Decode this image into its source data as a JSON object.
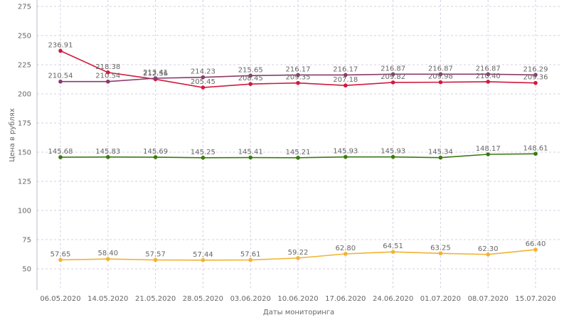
{
  "chart_data": {
    "type": "line",
    "title": "",
    "xlabel": "Даты мониторинга",
    "ylabel": "Цена в рублях",
    "ylim": [
      35,
      275
    ],
    "yticks": [
      50,
      75,
      100,
      125,
      150,
      175,
      200,
      225,
      250,
      275
    ],
    "grid": true,
    "legend": "none",
    "categories": [
      "06.05.2020",
      "14.05.2020",
      "21.05.2020",
      "28.05.2020",
      "03.06.2020",
      "10.06.2020",
      "17.06.2020",
      "24.06.2020",
      "01.07.2020",
      "08.07.2020",
      "15.07.2020"
    ],
    "series": [
      {
        "color": "#d01a3c",
        "values": [
          236.91,
          218.38,
          212.56,
          205.45,
          208.45,
          209.35,
          207.18,
          209.82,
          209.98,
          210.4,
          209.36
        ],
        "labels": [
          "236.91",
          "218.38",
          "212.56",
          "205.45",
          "208.45",
          "209.35",
          "207.18",
          "209.82",
          "209.98",
          "210.40",
          "209.36"
        ]
      },
      {
        "color": "#8b3a6c",
        "values": [
          210.54,
          210.54,
          213.41,
          214.23,
          215.65,
          216.17,
          216.17,
          216.87,
          216.87,
          216.87,
          216.29
        ],
        "labels": [
          "210.54",
          "210.54",
          "213.41",
          "214.23",
          "215.65",
          "216.17",
          "216.17",
          "216.87",
          "216.87",
          "216.87",
          "216.29"
        ]
      },
      {
        "color": "#3a7a10",
        "values": [
          145.68,
          145.83,
          145.69,
          145.25,
          145.41,
          145.21,
          145.93,
          145.93,
          145.34,
          148.17,
          148.61
        ],
        "labels": [
          "145.68",
          "145.83",
          "145.69",
          "145.25",
          "145.41",
          "145.21",
          "145.93",
          "145.93",
          "145.34",
          "148.17",
          "148.61"
        ]
      },
      {
        "color": "#f2b233",
        "values": [
          57.65,
          58.4,
          57.57,
          57.44,
          57.61,
          59.22,
          62.8,
          64.51,
          63.25,
          62.3,
          66.4
        ],
        "labels": [
          "57.65",
          "58.40",
          "57.57",
          "57.44",
          "57.61",
          "59.22",
          "62.80",
          "64.51",
          "63.25",
          "62.30",
          "66.40"
        ]
      }
    ]
  }
}
